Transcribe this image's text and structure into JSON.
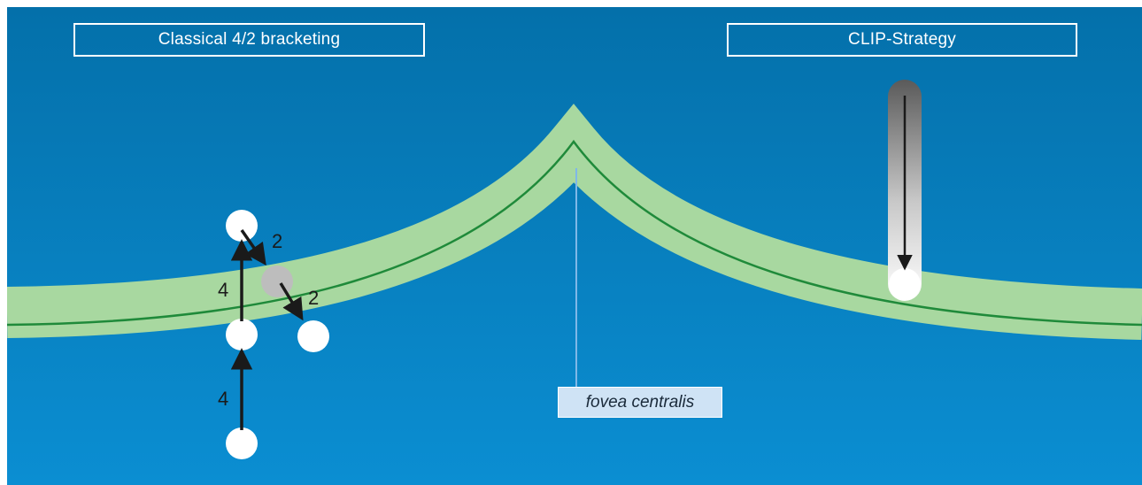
{
  "title_left": "Classical 4/2 bracketing",
  "title_right": "CLIP-Strategy",
  "fovea_label": "fovea centralis",
  "step_labels": [
    "4",
    "4",
    "2",
    "2"
  ],
  "colors": {
    "background_top": "#0470aa",
    "background_bottom": "#0b8ed2",
    "retina_band": "#a8d8a0",
    "retina_line": "#1f8a3a",
    "stimulus": "#ffffff",
    "stimulus_gray": "#bdbdbd",
    "arrow": "#1a1a1a",
    "fovea_marker": "#7fb8e8"
  }
}
